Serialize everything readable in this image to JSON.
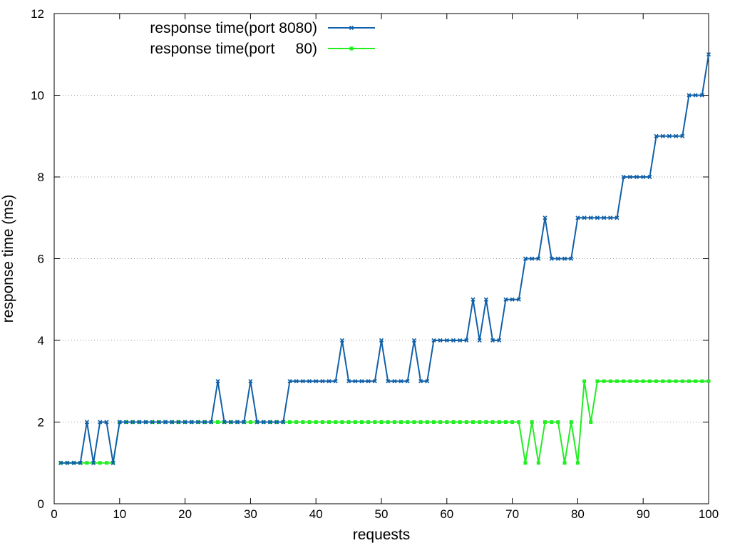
{
  "chart_data": {
    "type": "line",
    "title": "",
    "xlabel": "requests",
    "ylabel": "response time (ms)",
    "xlim": [
      0,
      100
    ],
    "ylim": [
      0,
      12
    ],
    "x_ticks": [
      0,
      10,
      20,
      30,
      40,
      50,
      60,
      70,
      80,
      90,
      100
    ],
    "y_ticks": [
      0,
      2,
      4,
      6,
      8,
      10,
      12
    ],
    "x_tick_labels": [
      "0",
      "10",
      "20",
      "30",
      "40",
      "50",
      "60",
      "70",
      "80",
      "90",
      "100"
    ],
    "y_tick_labels": [
      "0",
      "2",
      "4",
      "6",
      "8",
      "10",
      "12"
    ],
    "grid": "horizontal dotted",
    "legend_position": "top-left",
    "x": [
      1,
      2,
      3,
      4,
      5,
      6,
      7,
      8,
      9,
      10,
      11,
      12,
      13,
      14,
      15,
      16,
      17,
      18,
      19,
      20,
      21,
      22,
      23,
      24,
      25,
      26,
      27,
      28,
      29,
      30,
      31,
      32,
      33,
      34,
      35,
      36,
      37,
      38,
      39,
      40,
      41,
      42,
      43,
      44,
      45,
      46,
      47,
      48,
      49,
      50,
      51,
      52,
      53,
      54,
      55,
      56,
      57,
      58,
      59,
      60,
      61,
      62,
      63,
      64,
      65,
      66,
      67,
      68,
      69,
      70,
      71,
      72,
      73,
      74,
      75,
      76,
      77,
      78,
      79,
      80,
      81,
      82,
      83,
      84,
      85,
      86,
      87,
      88,
      89,
      90,
      91,
      92,
      93,
      94,
      95,
      96,
      97,
      98,
      99,
      100
    ],
    "series": [
      {
        "name": "response time(port 8080)",
        "legend_label_text": "response time(port 8080)",
        "color": "#1060a8",
        "marker": "cross",
        "values": [
          1,
          1,
          1,
          1,
          2,
          1,
          2,
          2,
          1,
          2,
          2,
          2,
          2,
          2,
          2,
          2,
          2,
          2,
          2,
          2,
          2,
          2,
          2,
          2,
          3,
          2,
          2,
          2,
          2,
          3,
          2,
          2,
          2,
          2,
          2,
          3,
          3,
          3,
          3,
          3,
          3,
          3,
          3,
          4,
          3,
          3,
          3,
          3,
          3,
          4,
          3,
          3,
          3,
          3,
          4,
          3,
          3,
          4,
          4,
          4,
          4,
          4,
          4,
          5,
          4,
          5,
          4,
          4,
          5,
          5,
          5,
          6,
          6,
          6,
          7,
          6,
          6,
          6,
          6,
          7,
          7,
          7,
          7,
          7,
          7,
          7,
          8,
          8,
          8,
          8,
          8,
          9,
          9,
          9,
          9,
          9,
          10,
          10,
          10,
          11
        ]
      },
      {
        "name": "response time(port     80)",
        "legend_label_text": "response time(port     80)",
        "color": "#22ee22",
        "marker": "square",
        "values": [
          1,
          1,
          1,
          1,
          1,
          1,
          1,
          1,
          1,
          2,
          2,
          2,
          2,
          2,
          2,
          2,
          2,
          2,
          2,
          2,
          2,
          2,
          2,
          2,
          2,
          2,
          2,
          2,
          2,
          2,
          2,
          2,
          2,
          2,
          2,
          2,
          2,
          2,
          2,
          2,
          2,
          2,
          2,
          2,
          2,
          2,
          2,
          2,
          2,
          2,
          2,
          2,
          2,
          2,
          2,
          2,
          2,
          2,
          2,
          2,
          2,
          2,
          2,
          2,
          2,
          2,
          2,
          2,
          2,
          2,
          2,
          1,
          2,
          1,
          2,
          2,
          2,
          1,
          2,
          1,
          3,
          2,
          3,
          3,
          3,
          3,
          3,
          3,
          3,
          3,
          3,
          3,
          3,
          3,
          3,
          3,
          3,
          3,
          3,
          3
        ]
      }
    ]
  }
}
